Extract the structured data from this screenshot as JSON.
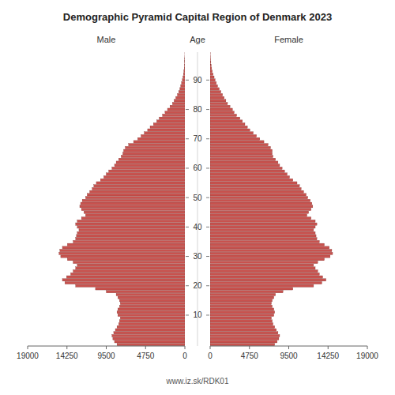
{
  "chart_data": {
    "type": "bar",
    "orientation": "horizontal",
    "title": "Demographic Pyramid Capital Region of Denmark 2023",
    "ylabel": "Age",
    "annotations": [
      "www.iz.sk/RDK01"
    ],
    "grid": false,
    "categories": [
      0,
      1,
      2,
      3,
      4,
      5,
      6,
      7,
      8,
      9,
      10,
      11,
      12,
      13,
      14,
      15,
      16,
      17,
      18,
      19,
      20,
      21,
      22,
      23,
      24,
      25,
      26,
      27,
      28,
      29,
      30,
      31,
      32,
      33,
      34,
      35,
      36,
      37,
      38,
      39,
      40,
      41,
      42,
      43,
      44,
      45,
      46,
      47,
      48,
      49,
      50,
      51,
      52,
      53,
      54,
      55,
      56,
      57,
      58,
      59,
      60,
      61,
      62,
      63,
      64,
      65,
      66,
      67,
      68,
      69,
      70,
      71,
      72,
      73,
      74,
      75,
      76,
      77,
      78,
      79,
      80,
      81,
      82,
      83,
      84,
      85,
      86,
      87,
      88,
      89,
      90,
      91,
      92,
      93,
      94,
      95,
      96,
      97,
      98,
      99
    ],
    "series": [
      {
        "name": "Male",
        "color": "#c8524e",
        "values": [
          8200,
          8500,
          8700,
          8800,
          8600,
          8400,
          8200,
          8000,
          7900,
          7800,
          8100,
          8200,
          8100,
          7900,
          7800,
          7900,
          8100,
          8300,
          9500,
          10800,
          13200,
          14500,
          14800,
          14300,
          13800,
          13500,
          13200,
          13000,
          13500,
          14200,
          15000,
          15200,
          15100,
          14800,
          14200,
          13500,
          13200,
          13100,
          13000,
          12800,
          13000,
          13200,
          13000,
          12500,
          12000,
          12200,
          12500,
          12700,
          12600,
          12400,
          12000,
          11800,
          11500,
          11200,
          11000,
          10700,
          10200,
          9800,
          9500,
          9200,
          8800,
          8500,
          8300,
          8000,
          7700,
          7500,
          7400,
          7200,
          6800,
          6200,
          5700,
          5300,
          4900,
          4500,
          4200,
          3800,
          3400,
          3100,
          2700,
          2400,
          2100,
          1800,
          1500,
          1300,
          1100,
          900,
          750,
          600,
          500,
          400,
          300,
          230,
          170,
          120,
          80,
          55,
          35,
          20,
          10,
          5
        ]
      },
      {
        "name": "Female",
        "color": "#c8524e",
        "values": [
          7800,
          8100,
          8300,
          8400,
          8200,
          8000,
          7800,
          7600,
          7500,
          7400,
          7700,
          7800,
          7700,
          7500,
          7400,
          7500,
          7700,
          7900,
          8800,
          10000,
          12500,
          13500,
          14000,
          13600,
          13200,
          13000,
          12700,
          12500,
          13000,
          13800,
          14500,
          14800,
          14700,
          14400,
          13800,
          13200,
          12900,
          12800,
          12700,
          12500,
          12700,
          12900,
          12700,
          12200,
          11700,
          11900,
          12200,
          12400,
          12300,
          12100,
          11800,
          11600,
          11300,
          11000,
          10800,
          10500,
          10000,
          9600,
          9300,
          9000,
          8700,
          8400,
          8200,
          7900,
          7600,
          7500,
          7500,
          7300,
          7000,
          6500,
          6000,
          5600,
          5200,
          4800,
          4500,
          4200,
          3900,
          3600,
          3200,
          2900,
          2700,
          2400,
          2100,
          1900,
          1700,
          1500,
          1300,
          1100,
          900,
          750,
          600,
          480,
          360,
          260,
          180,
          130,
          85,
          55,
          30,
          15
        ]
      }
    ],
    "xlim": [
      0,
      19000
    ],
    "xticks": [
      0,
      4750,
      9500,
      14250,
      19000
    ],
    "ylim": [
      -0.5,
      99.5
    ],
    "yticks": [
      10,
      20,
      30,
      40,
      50,
      60,
      70,
      80,
      90
    ]
  }
}
